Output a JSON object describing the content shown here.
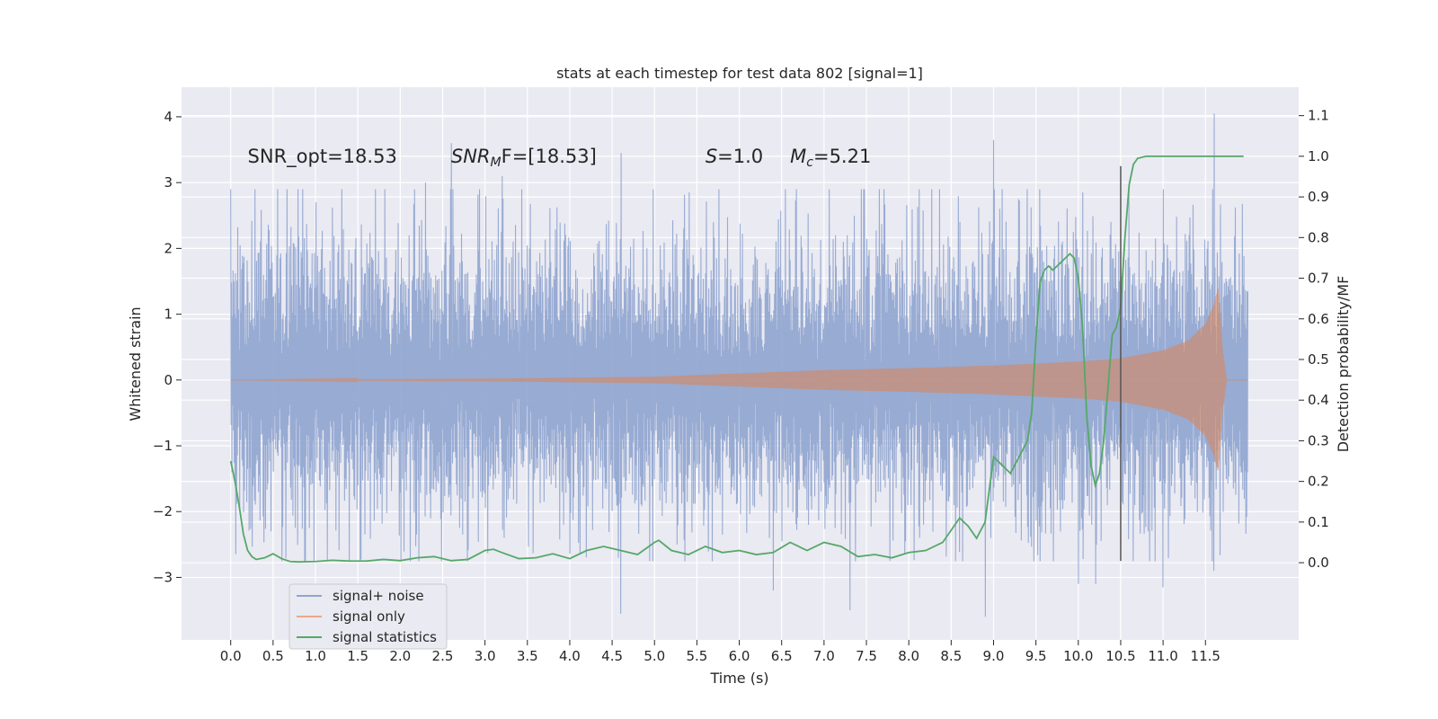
{
  "chart_data": {
    "type": "line",
    "title": "stats at each timestep for test data 802 [signal=1]",
    "xlabel": "Time (s)",
    "ylabel": "Whitened strain",
    "ylabel_right": "Detection probability/MF",
    "xlim": [
      -0.58,
      12.6
    ],
    "ylim": [
      -3.95,
      4.45
    ],
    "ylim_right": [
      -0.19,
      1.17
    ],
    "xticks": [
      "0.0",
      "0.5",
      "1.0",
      "1.5",
      "2.0",
      "2.5",
      "3.0",
      "3.5",
      "4.0",
      "4.5",
      "5.0",
      "5.5",
      "6.0",
      "6.5",
      "7.0",
      "7.5",
      "8.0",
      "8.5",
      "9.0",
      "9.5",
      "10.0",
      "10.5",
      "11.0",
      "11.5"
    ],
    "yticks_left": [
      "4",
      "3",
      "2",
      "1",
      "0",
      "−1",
      "−2",
      "−3"
    ],
    "yticks_right": [
      "1.1",
      "1.0",
      "0.9",
      "0.8",
      "0.7",
      "0.6",
      "0.5",
      "0.4",
      "0.3",
      "0.2",
      "0.1",
      "0.0"
    ],
    "grid": true,
    "legend": {
      "position": "lower-left",
      "entries": [
        "signal+ noise",
        "signal only",
        "signal statistics"
      ]
    },
    "annotations": [
      {
        "text": "SNR_opt=18.53",
        "x": 0.2,
        "y": 3.3
      },
      {
        "text_parts": [
          "SNR",
          "M",
          "F=[18.53]"
        ],
        "x": 2.6,
        "y": 3.3
      },
      {
        "text_parts": [
          "S",
          "=1.0"
        ],
        "x": 5.6,
        "y": 3.3
      },
      {
        "text_parts": [
          "M",
          "c",
          "=5.21"
        ],
        "x": 6.6,
        "y": 3.3
      }
    ],
    "vline": {
      "x": 10.5,
      "y_range": [
        -2.75,
        3.25
      ],
      "color": "#555555"
    },
    "series": [
      {
        "name": "signal+ noise",
        "color": "#8fa4cf",
        "x_range": [
          0.0,
          12.0
        ],
        "noise_sigma": 1.0,
        "peak_values": [
          [
            1.0,
            2.7
          ],
          [
            2.3,
            3.0
          ],
          [
            2.6,
            3.6
          ],
          [
            3.2,
            3.1
          ],
          [
            4.6,
            3.45
          ],
          [
            4.6,
            -3.55
          ],
          [
            5.0,
            0.9
          ],
          [
            6.4,
            -3.2
          ],
          [
            7.3,
            -3.5
          ],
          [
            9.0,
            3.65
          ],
          [
            8.9,
            -3.6
          ],
          [
            10.0,
            -3.1
          ],
          [
            10.2,
            -3.1
          ],
          [
            11.0,
            -3.15
          ],
          [
            11.6,
            4.05
          ],
          [
            11.6,
            -2.9
          ]
        ]
      },
      {
        "name": "signal only",
        "color": "#dd8452",
        "envelope": {
          "t": [
            0.0,
            3.0,
            5.0,
            6.0,
            7.0,
            8.0,
            9.0,
            9.5,
            10.0,
            10.5,
            11.0,
            11.3,
            11.5,
            11.6,
            11.65,
            11.7,
            11.75,
            12.0
          ],
          "amp": [
            0.0,
            0.02,
            0.05,
            0.1,
            0.15,
            0.18,
            0.22,
            0.25,
            0.28,
            0.33,
            0.45,
            0.6,
            0.85,
            1.15,
            1.4,
            0.5,
            0.0,
            0.0
          ]
        }
      },
      {
        "name": "signal statistics",
        "color": "#55a868",
        "axis": "right",
        "points": [
          [
            0.0,
            0.25
          ],
          [
            0.05,
            0.2
          ],
          [
            0.1,
            0.14
          ],
          [
            0.15,
            0.07
          ],
          [
            0.2,
            0.03
          ],
          [
            0.25,
            0.015
          ],
          [
            0.3,
            0.008
          ],
          [
            0.4,
            0.012
          ],
          [
            0.5,
            0.022
          ],
          [
            0.6,
            0.01
          ],
          [
            0.7,
            0.003
          ],
          [
            0.8,
            0.002
          ],
          [
            1.0,
            0.003
          ],
          [
            1.2,
            0.006
          ],
          [
            1.4,
            0.004
          ],
          [
            1.6,
            0.004
          ],
          [
            1.8,
            0.008
          ],
          [
            2.0,
            0.005
          ],
          [
            2.2,
            0.012
          ],
          [
            2.4,
            0.015
          ],
          [
            2.6,
            0.005
          ],
          [
            2.8,
            0.008
          ],
          [
            3.0,
            0.03
          ],
          [
            3.1,
            0.033
          ],
          [
            3.2,
            0.025
          ],
          [
            3.4,
            0.01
          ],
          [
            3.6,
            0.012
          ],
          [
            3.8,
            0.022
          ],
          [
            4.0,
            0.01
          ],
          [
            4.2,
            0.03
          ],
          [
            4.4,
            0.04
          ],
          [
            4.6,
            0.03
          ],
          [
            4.8,
            0.02
          ],
          [
            5.0,
            0.05
          ],
          [
            5.05,
            0.055
          ],
          [
            5.2,
            0.03
          ],
          [
            5.4,
            0.02
          ],
          [
            5.6,
            0.04
          ],
          [
            5.8,
            0.025
          ],
          [
            6.0,
            0.03
          ],
          [
            6.2,
            0.02
          ],
          [
            6.4,
            0.025
          ],
          [
            6.6,
            0.05
          ],
          [
            6.8,
            0.03
          ],
          [
            7.0,
            0.05
          ],
          [
            7.2,
            0.04
          ],
          [
            7.4,
            0.015
          ],
          [
            7.6,
            0.02
          ],
          [
            7.8,
            0.012
          ],
          [
            8.0,
            0.025
          ],
          [
            8.2,
            0.03
          ],
          [
            8.4,
            0.05
          ],
          [
            8.6,
            0.11
          ],
          [
            8.7,
            0.09
          ],
          [
            8.8,
            0.06
          ],
          [
            8.9,
            0.1
          ],
          [
            9.0,
            0.26
          ],
          [
            9.1,
            0.24
          ],
          [
            9.2,
            0.22
          ],
          [
            9.3,
            0.26
          ],
          [
            9.4,
            0.3
          ],
          [
            9.45,
            0.37
          ],
          [
            9.5,
            0.55
          ],
          [
            9.55,
            0.69
          ],
          [
            9.6,
            0.72
          ],
          [
            9.65,
            0.73
          ],
          [
            9.7,
            0.72
          ],
          [
            9.8,
            0.74
          ],
          [
            9.9,
            0.76
          ],
          [
            9.95,
            0.75
          ],
          [
            10.0,
            0.7
          ],
          [
            10.05,
            0.58
          ],
          [
            10.1,
            0.36
          ],
          [
            10.15,
            0.24
          ],
          [
            10.2,
            0.19
          ],
          [
            10.25,
            0.22
          ],
          [
            10.3,
            0.3
          ],
          [
            10.35,
            0.43
          ],
          [
            10.4,
            0.56
          ],
          [
            10.45,
            0.58
          ],
          [
            10.5,
            0.63
          ],
          [
            10.55,
            0.8
          ],
          [
            10.6,
            0.93
          ],
          [
            10.65,
            0.98
          ],
          [
            10.7,
            0.995
          ],
          [
            10.8,
            1.0
          ],
          [
            11.0,
            1.0
          ],
          [
            11.5,
            1.0
          ],
          [
            11.95,
            1.0
          ]
        ]
      }
    ]
  }
}
